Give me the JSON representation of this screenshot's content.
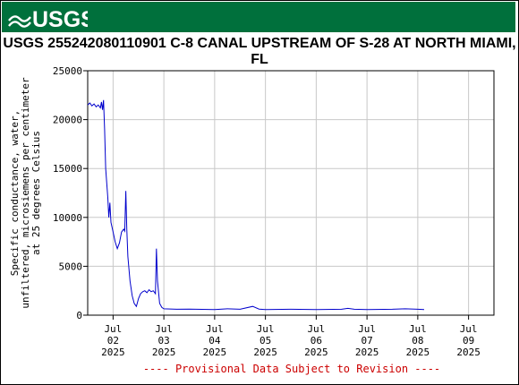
{
  "banner": {
    "logo_text": "USGS",
    "color": "#00703c"
  },
  "chart_data": {
    "type": "line",
    "title": "USGS 255242080110901 C-8 CANAL UPSTREAM OF S-28 AT NORTH MIAMI, FL",
    "ylabel": [
      "Specific conductance, water,",
      "unfiltered, microsiemens per centimeter",
      "at 25 degrees Celsius"
    ],
    "ylim": [
      0,
      25000
    ],
    "yticks": [
      0,
      5000,
      10000,
      15000,
      20000,
      25000
    ],
    "xlim": [
      "2025-07-01T12:00",
      "2025-07-09T12:00"
    ],
    "xticks": [
      {
        "t": "2025-07-02T00:00",
        "lines": [
          "Jul",
          "02",
          "2025"
        ]
      },
      {
        "t": "2025-07-03T00:00",
        "lines": [
          "Jul",
          "03",
          "2025"
        ]
      },
      {
        "t": "2025-07-04T00:00",
        "lines": [
          "Jul",
          "04",
          "2025"
        ]
      },
      {
        "t": "2025-07-05T00:00",
        "lines": [
          "Jul",
          "05",
          "2025"
        ]
      },
      {
        "t": "2025-07-06T00:00",
        "lines": [
          "Jul",
          "06",
          "2025"
        ]
      },
      {
        "t": "2025-07-07T00:00",
        "lines": [
          "Jul",
          "07",
          "2025"
        ]
      },
      {
        "t": "2025-07-08T00:00",
        "lines": [
          "Jul",
          "08",
          "2025"
        ]
      },
      {
        "t": "2025-07-09T00:00",
        "lines": [
          "Jul",
          "09",
          "2025"
        ]
      }
    ],
    "grid": true,
    "line_color": "#0000cc",
    "series": [
      {
        "points": [
          [
            "2025-07-01T12:00",
            21500
          ],
          [
            "2025-07-01T13:00",
            21700
          ],
          [
            "2025-07-01T14:00",
            21400
          ],
          [
            "2025-07-01T15:00",
            21600
          ],
          [
            "2025-07-01T16:00",
            21300
          ],
          [
            "2025-07-01T17:00",
            21500
          ],
          [
            "2025-07-01T18:00",
            21200
          ],
          [
            "2025-07-01T18:30",
            21800
          ],
          [
            "2025-07-01T19:00",
            21000
          ],
          [
            "2025-07-01T19:30",
            22000
          ],
          [
            "2025-07-01T20:00",
            19000
          ],
          [
            "2025-07-01T20:30",
            15000
          ],
          [
            "2025-07-01T21:00",
            13500
          ],
          [
            "2025-07-01T21:30",
            12000
          ],
          [
            "2025-07-01T22:00",
            10000
          ],
          [
            "2025-07-01T22:30",
            11500
          ],
          [
            "2025-07-01T23:00",
            9500
          ],
          [
            "2025-07-02T00:00",
            8500
          ],
          [
            "2025-07-02T01:00",
            7500
          ],
          [
            "2025-07-02T02:00",
            6800
          ],
          [
            "2025-07-02T03:00",
            7400
          ],
          [
            "2025-07-02T04:00",
            8500
          ],
          [
            "2025-07-02T05:00",
            8800
          ],
          [
            "2025-07-02T05:30",
            8600
          ],
          [
            "2025-07-02T06:00",
            12700
          ],
          [
            "2025-07-02T06:30",
            8800
          ],
          [
            "2025-07-02T07:00",
            6000
          ],
          [
            "2025-07-02T08:00",
            3500
          ],
          [
            "2025-07-02T09:00",
            2000
          ],
          [
            "2025-07-02T10:00",
            1200
          ],
          [
            "2025-07-02T11:00",
            900
          ],
          [
            "2025-07-02T12:00",
            1700
          ],
          [
            "2025-07-02T13:00",
            2200
          ],
          [
            "2025-07-02T14:00",
            2400
          ],
          [
            "2025-07-02T15:00",
            2500
          ],
          [
            "2025-07-02T16:00",
            2300
          ],
          [
            "2025-07-02T17:00",
            2600
          ],
          [
            "2025-07-02T18:00",
            2400
          ],
          [
            "2025-07-02T19:00",
            2500
          ],
          [
            "2025-07-02T20:00",
            2200
          ],
          [
            "2025-07-02T20:30",
            6800
          ],
          [
            "2025-07-02T21:00",
            3500
          ],
          [
            "2025-07-02T22:00",
            1200
          ],
          [
            "2025-07-02T23:00",
            800
          ],
          [
            "2025-07-03T00:00",
            650
          ],
          [
            "2025-07-03T06:00",
            600
          ],
          [
            "2025-07-03T12:00",
            620
          ],
          [
            "2025-07-04T00:00",
            580
          ],
          [
            "2025-07-04T06:00",
            650
          ],
          [
            "2025-07-04T12:00",
            600
          ],
          [
            "2025-07-04T18:00",
            900
          ],
          [
            "2025-07-04T21:00",
            620
          ],
          [
            "2025-07-05T00:00",
            580
          ],
          [
            "2025-07-05T12:00",
            600
          ],
          [
            "2025-07-06T00:00",
            580
          ],
          [
            "2025-07-06T12:00",
            600
          ],
          [
            "2025-07-06T15:00",
            700
          ],
          [
            "2025-07-06T18:00",
            600
          ],
          [
            "2025-07-07T00:00",
            580
          ],
          [
            "2025-07-07T12:00",
            600
          ],
          [
            "2025-07-07T18:00",
            650
          ],
          [
            "2025-07-08T00:00",
            600
          ],
          [
            "2025-07-08T03:00",
            580
          ]
        ]
      }
    ],
    "annotation": "---- Provisional Data Subject to Revision ----"
  }
}
